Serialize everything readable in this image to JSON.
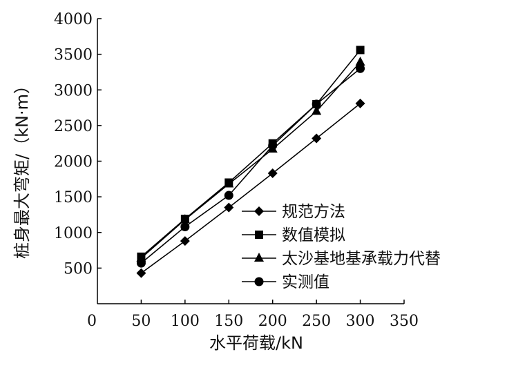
{
  "chart_data": {
    "type": "line",
    "xlabel": "水平荷载/kN",
    "ylabel": "桩身最大弯矩/（kN·m）",
    "xlim": [
      0,
      350
    ],
    "ylim": [
      0,
      4000
    ],
    "xticks": [
      "0",
      "50",
      "100",
      "150",
      "200",
      "250",
      "300",
      "350"
    ],
    "yticks": [
      "500",
      "1000",
      "1500",
      "2000",
      "2500",
      "3000",
      "3500",
      "4000"
    ],
    "grid": false,
    "legend_position": "bottom-right",
    "x": [
      50,
      100,
      150,
      200,
      250,
      300
    ],
    "series": [
      {
        "name": "规范方法",
        "marker": "diamond",
        "values": [
          430,
          880,
          1350,
          1830,
          2320,
          2810
        ]
      },
      {
        "name": "数值模拟",
        "marker": "square",
        "values": [
          660,
          1190,
          1700,
          2250,
          2800,
          3560
        ]
      },
      {
        "name": "太沙基地基承载力代替",
        "marker": "triangle",
        "values": [
          640,
          1180,
          1680,
          2170,
          2700,
          3390
        ]
      },
      {
        "name": "实测值",
        "marker": "circle",
        "values": [
          570,
          1080,
          1520,
          2220,
          2800,
          3300
        ]
      }
    ],
    "line_color": "#000000"
  }
}
